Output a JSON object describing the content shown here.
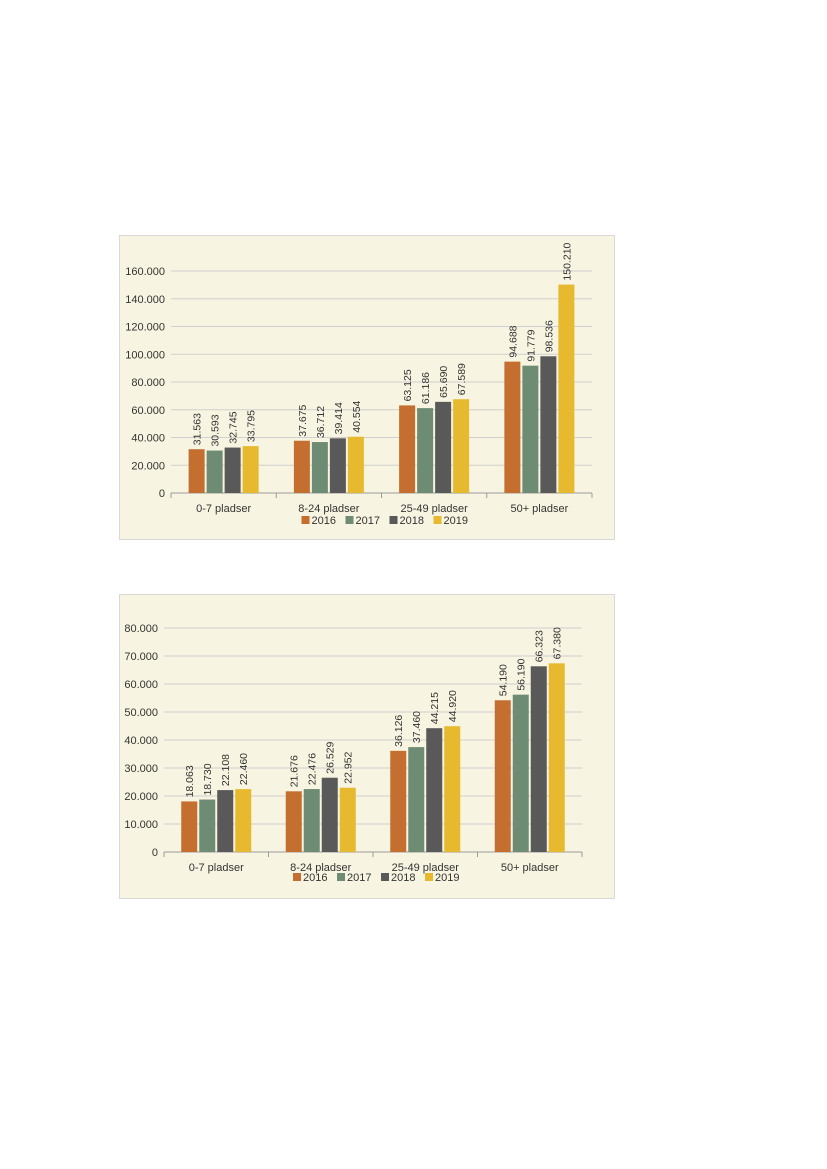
{
  "chart_data": [
    {
      "type": "bar",
      "categories": [
        "0-7 pladser",
        "8-24 pladser",
        "25-49 pladser",
        "50+ pladser"
      ],
      "series": [
        {
          "name": "2016",
          "values": [
            31563,
            37675,
            63125,
            94688
          ],
          "labels": [
            "31.563",
            "37.675",
            "63.125",
            "94.688"
          ]
        },
        {
          "name": "2017",
          "values": [
            30593,
            36712,
            61186,
            91779
          ],
          "labels": [
            "30.593",
            "36.712",
            "61.186",
            "91.779"
          ]
        },
        {
          "name": "2018",
          "values": [
            32745,
            39414,
            65690,
            98536
          ],
          "labels": [
            "32.745",
            "39.414",
            "65.690",
            "98.536"
          ]
        },
        {
          "name": "2019",
          "values": [
            33795,
            40554,
            67589,
            150210
          ],
          "labels": [
            "33.795",
            "40.554",
            "67.589",
            "150.210"
          ]
        }
      ],
      "yticks": [
        "0",
        "20.000",
        "40.000",
        "60.000",
        "80.000",
        "100.000",
        "120.000",
        "140.000",
        "160.000"
      ],
      "ylim": [
        0,
        160000
      ],
      "grid": true,
      "legend_position": "bottom",
      "colors": [
        "#c46e30",
        "#6e8b74",
        "#595959",
        "#e6b92e"
      ]
    },
    {
      "type": "bar",
      "categories": [
        "0-7 pladser",
        "8-24 pladser",
        "25-49 pladser",
        "50+ pladser"
      ],
      "series": [
        {
          "name": "2016",
          "values": [
            18063,
            21676,
            36126,
            54190
          ],
          "labels": [
            "18.063",
            "21.676",
            "36.126",
            "54.190"
          ]
        },
        {
          "name": "2017",
          "values": [
            18730,
            22476,
            37460,
            56190
          ],
          "labels": [
            "18.730",
            "22.476",
            "37.460",
            "56.190"
          ]
        },
        {
          "name": "2018",
          "values": [
            22108,
            26529,
            44215,
            66323
          ],
          "labels": [
            "22.108",
            "26.529",
            "44.215",
            "66.323"
          ]
        },
        {
          "name": "2019",
          "values": [
            22460,
            22952,
            44920,
            67380
          ],
          "labels": [
            "22.460",
            "22.952",
            "44.920",
            "67.380"
          ]
        }
      ],
      "yticks": [
        "0",
        "10.000",
        "20.000",
        "30.000",
        "40.000",
        "50.000",
        "60.000",
        "70.000",
        "80.000"
      ],
      "ylim": [
        0,
        80000
      ],
      "grid": true,
      "legend_position": "bottom",
      "colors": [
        "#c46e30",
        "#6e8b74",
        "#595959",
        "#e6b92e"
      ]
    }
  ]
}
